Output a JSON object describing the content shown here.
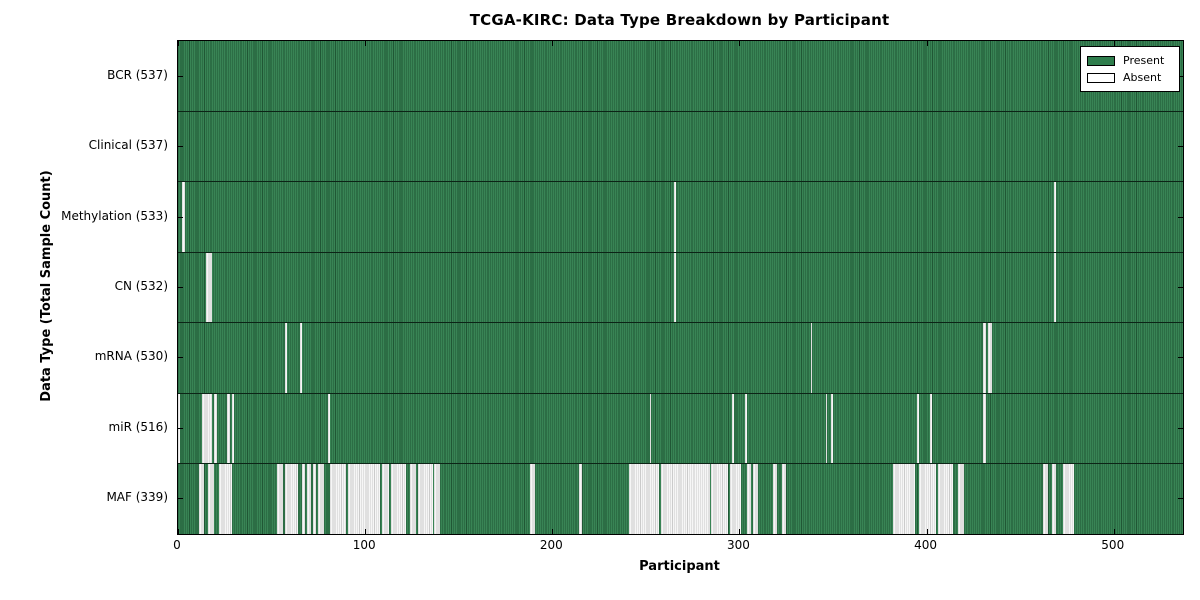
{
  "title": "TCGA-KIRC: Data Type Breakdown by Participant",
  "axis": {
    "xlabel": "Participant",
    "ylabel": "Data Type (Total Sample Count)",
    "x_ticks": [
      0,
      100,
      200,
      300,
      400,
      500
    ]
  },
  "legend": {
    "present_label": "Present",
    "absent_label": "Absent",
    "position": "upper right"
  },
  "colors": {
    "present": "#2E7D4C",
    "absent": "#ECECEC",
    "row_separator": "#0c2416",
    "plot_border": "#000000",
    "background": "#FFFFFF"
  },
  "chart_data": {
    "type": "heatmap",
    "title": "TCGA-KIRC: Data Type Breakdown by Participant",
    "xlabel": "Participant",
    "ylabel": "Data Type (Total Sample Count)",
    "x_range": [
      0,
      537
    ],
    "n_participants": 537,
    "x_tick_values": [
      0,
      100,
      200,
      300,
      400,
      500
    ],
    "legend_entries": [
      "Present",
      "Absent"
    ],
    "cell_states": {
      "present": "Present",
      "absent": "Absent"
    },
    "rows": [
      {
        "name": "BCR",
        "label": "BCR (537)",
        "total_samples": 537,
        "absent_ranges": []
      },
      {
        "name": "Clinical",
        "label": "Clinical (537)",
        "total_samples": 537,
        "absent_ranges": []
      },
      {
        "name": "Methylation",
        "label": "Methylation (533)",
        "total_samples": 533,
        "absent_ranges": [
          [
            2,
            3
          ],
          [
            265,
            265
          ],
          [
            468,
            468
          ]
        ]
      },
      {
        "name": "CN",
        "label": "CN (532)",
        "total_samples": 532,
        "absent_ranges": [
          [
            15,
            17
          ],
          [
            265,
            265
          ],
          [
            468,
            468
          ]
        ]
      },
      {
        "name": "mRNA",
        "label": "mRNA (530)",
        "total_samples": 530,
        "absent_ranges": [
          [
            57,
            57
          ],
          [
            65,
            65
          ],
          [
            338,
            338
          ],
          [
            430,
            431
          ],
          [
            433,
            434
          ]
        ]
      },
      {
        "name": "miR",
        "label": "miR (516)",
        "total_samples": 516,
        "absent_ranges": [
          [
            0,
            0
          ],
          [
            13,
            17
          ],
          [
            19,
            20
          ],
          [
            26,
            27
          ],
          [
            29,
            29
          ],
          [
            80,
            80
          ],
          [
            252,
            252
          ],
          [
            296,
            296
          ],
          [
            303,
            303
          ],
          [
            346,
            346
          ],
          [
            349,
            349
          ],
          [
            395,
            395
          ],
          [
            402,
            402
          ],
          [
            430,
            431
          ]
        ]
      },
      {
        "name": "MAF",
        "label": "MAF (339)",
        "total_samples": 339,
        "absent_ranges": [
          [
            11,
            13
          ],
          [
            16,
            18
          ],
          [
            22,
            28
          ],
          [
            53,
            55
          ],
          [
            57,
            63
          ],
          [
            66,
            67
          ],
          [
            69,
            70
          ],
          [
            72,
            73
          ],
          [
            75,
            77
          ],
          [
            81,
            89
          ],
          [
            91,
            107
          ],
          [
            109,
            112
          ],
          [
            114,
            121
          ],
          [
            124,
            126
          ],
          [
            128,
            135
          ],
          [
            137,
            139
          ],
          [
            188,
            190
          ],
          [
            214,
            215
          ],
          [
            241,
            256
          ],
          [
            258,
            283
          ],
          [
            285,
            293
          ],
          [
            295,
            300
          ],
          [
            304,
            305
          ],
          [
            307,
            309
          ],
          [
            318,
            319
          ],
          [
            323,
            324
          ],
          [
            382,
            393
          ],
          [
            396,
            404
          ],
          [
            406,
            413
          ],
          [
            417,
            419
          ],
          [
            462,
            464
          ],
          [
            467,
            468
          ],
          [
            473,
            478
          ]
        ]
      }
    ]
  }
}
